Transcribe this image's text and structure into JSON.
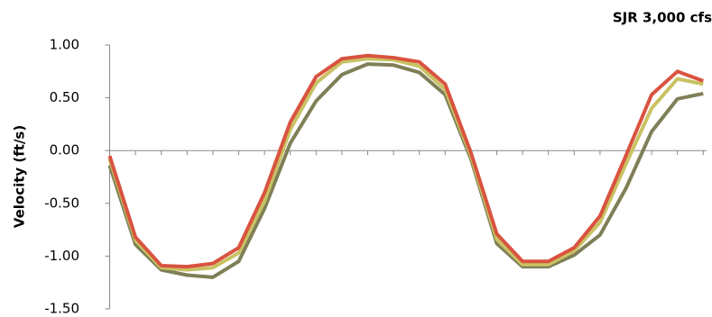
{
  "chart_data": {
    "type": "line",
    "title": "SJR 3,000 cfs",
    "y_label": "Velocity (ft/s)",
    "categories": [
      null,
      null,
      null,
      null,
      null,
      null,
      null,
      null,
      null,
      null,
      null,
      null,
      null,
      null,
      null,
      null,
      null,
      null,
      null,
      null,
      null,
      null,
      null,
      null
    ],
    "series": [
      {
        "color": "#d9533f",
        "values": [
          -0.05,
          -0.82,
          -1.09,
          -1.1,
          -1.07,
          -0.92,
          -0.4,
          0.27,
          0.7,
          0.87,
          0.9,
          0.88,
          0.84,
          0.63,
          -0.02,
          -0.79,
          -1.05,
          -1.05,
          -0.92,
          -0.62,
          -0.05,
          0.53,
          0.75,
          0.66
        ]
      },
      {
        "color": "#c9c263",
        "values": [
          -0.08,
          -0.85,
          -1.11,
          -1.13,
          -1.11,
          -0.97,
          -0.48,
          0.2,
          0.64,
          0.84,
          0.87,
          0.86,
          0.8,
          0.58,
          -0.05,
          -0.84,
          -1.08,
          -1.08,
          -0.95,
          -0.68,
          -0.13,
          0.4,
          0.68,
          0.63
        ]
      },
      {
        "color": "#7f7f57",
        "values": [
          -0.14,
          -0.89,
          -1.13,
          -1.18,
          -1.2,
          -1.05,
          -0.55,
          0.07,
          0.47,
          0.72,
          0.82,
          0.81,
          0.74,
          0.53,
          -0.08,
          -0.88,
          -1.1,
          -1.1,
          -0.99,
          -0.8,
          -0.36,
          0.18,
          0.49,
          0.54
        ]
      }
    ],
    "ylim": [
      -1.5,
      1.0
    ],
    "yticks": [
      {
        "value": 1,
        "label": "1.00"
      },
      {
        "value": 0.5,
        "label": "0.50"
      },
      {
        "value": 0,
        "label": "0.00"
      },
      {
        "value": -0.5,
        "label": "-0.50"
      },
      {
        "value": -1,
        "label": "-1.00"
      },
      {
        "value": -1.5,
        "label": "-1.50"
      }
    ],
    "grid": false
  }
}
